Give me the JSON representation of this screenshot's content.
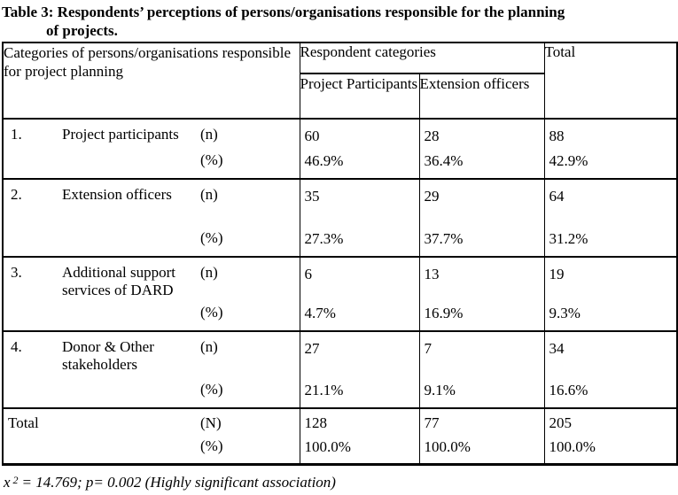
{
  "title": {
    "line1": "Table 3: Respondents’ perceptions of persons/organisations responsible for the planning",
    "line2": "of projects."
  },
  "table": {
    "header": {
      "categories": "Categories of persons/organisations responsible for project planning",
      "respondent_categories": "Respondent categories",
      "project_participants": "Project Participants",
      "extension_officers": "Extension officers",
      "total": "Total"
    },
    "rows": [
      {
        "number": "1.",
        "name1": "Project participants",
        "name2": "",
        "n_label": "(n)",
        "pct_label": "(%)",
        "pp_n": "60",
        "pp_pct": "46.9%",
        "eo_n": "28",
        "eo_pct": "36.4%",
        "tot_n": "88",
        "tot_pct": "42.9%"
      },
      {
        "number": "2.",
        "name1": "Extension officers",
        "name2": "",
        "n_label": "(n)",
        "pct_label": "(%)",
        "pp_n": "35",
        "pp_pct": "27.3%",
        "eo_n": "29",
        "eo_pct": "37.7%",
        "tot_n": "64",
        "tot_pct": "31.2%"
      },
      {
        "number": "3.",
        "name1": "Additional support",
        "name2": "services of DARD",
        "n_label": "(n)",
        "pct_label": "(%)",
        "pp_n": "6",
        "pp_pct": "4.7%",
        "eo_n": "13",
        "eo_pct": "16.9%",
        "tot_n": "19",
        "tot_pct": "9.3%"
      },
      {
        "number": "4.",
        "name1": "Donor & Other",
        "name2": "stakeholders",
        "n_label": "(n)",
        "pct_label": "(%)",
        "pp_n": "27",
        "pp_pct": "21.1%",
        "eo_n": "7",
        "eo_pct": "9.1%",
        "tot_n": "34",
        "tot_pct": "16.6%"
      }
    ],
    "total_row": {
      "label": "Total",
      "n_label": "(N)",
      "pct_label": "(%)",
      "pp_n": "128",
      "pp_pct": "100.0%",
      "eo_n": "77",
      "eo_pct": "100.0%",
      "tot_n": "205",
      "tot_pct": "100.0%"
    }
  },
  "footnote": {
    "chi": "x",
    "exponent": "2",
    "rest": "= 14.769; p= 0.002 (Highly significant association)"
  }
}
